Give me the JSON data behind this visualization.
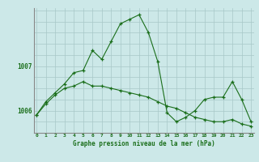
{
  "title": "Graphe pression niveau de la mer (hPa)",
  "background_color": "#cce8e8",
  "line_color": "#1a6e1a",
  "grid_color": "#a8c8c8",
  "x_labels": [
    "0",
    "1",
    "2",
    "3",
    "4",
    "5",
    "6",
    "7",
    "8",
    "9",
    "10",
    "11",
    "12",
    "13",
    "14",
    "15",
    "16",
    "17",
    "18",
    "19",
    "20",
    "21",
    "22",
    "23"
  ],
  "yticks": [
    1006,
    1007
  ],
  "ylim": [
    1005.5,
    1008.3
  ],
  "xlim": [
    -0.3,
    23.3
  ],
  "series1_x": [
    0,
    1,
    2,
    3,
    4,
    5,
    6,
    7,
    8,
    9,
    10,
    11,
    12,
    13,
    14,
    15,
    16,
    17,
    18,
    19,
    20,
    21,
    22,
    23
  ],
  "series1_y": [
    1005.9,
    1006.2,
    1006.4,
    1006.6,
    1006.85,
    1006.9,
    1007.35,
    1007.15,
    1007.55,
    1007.95,
    1008.05,
    1008.15,
    1007.75,
    1007.1,
    1005.95,
    1005.75,
    1005.85,
    1006.0,
    1006.25,
    1006.3,
    1006.3,
    1006.65,
    1006.25,
    1005.75
  ],
  "series2_x": [
    0,
    1,
    2,
    3,
    4,
    5,
    6,
    7,
    8,
    9,
    10,
    11,
    12,
    13,
    14,
    15,
    16,
    17,
    18,
    19,
    20,
    21,
    22,
    23
  ],
  "series2_y": [
    1005.9,
    1006.15,
    1006.35,
    1006.5,
    1006.55,
    1006.65,
    1006.55,
    1006.55,
    1006.5,
    1006.45,
    1006.4,
    1006.35,
    1006.3,
    1006.2,
    1006.1,
    1006.05,
    1005.95,
    1005.85,
    1005.8,
    1005.75,
    1005.75,
    1005.8,
    1005.7,
    1005.65
  ]
}
